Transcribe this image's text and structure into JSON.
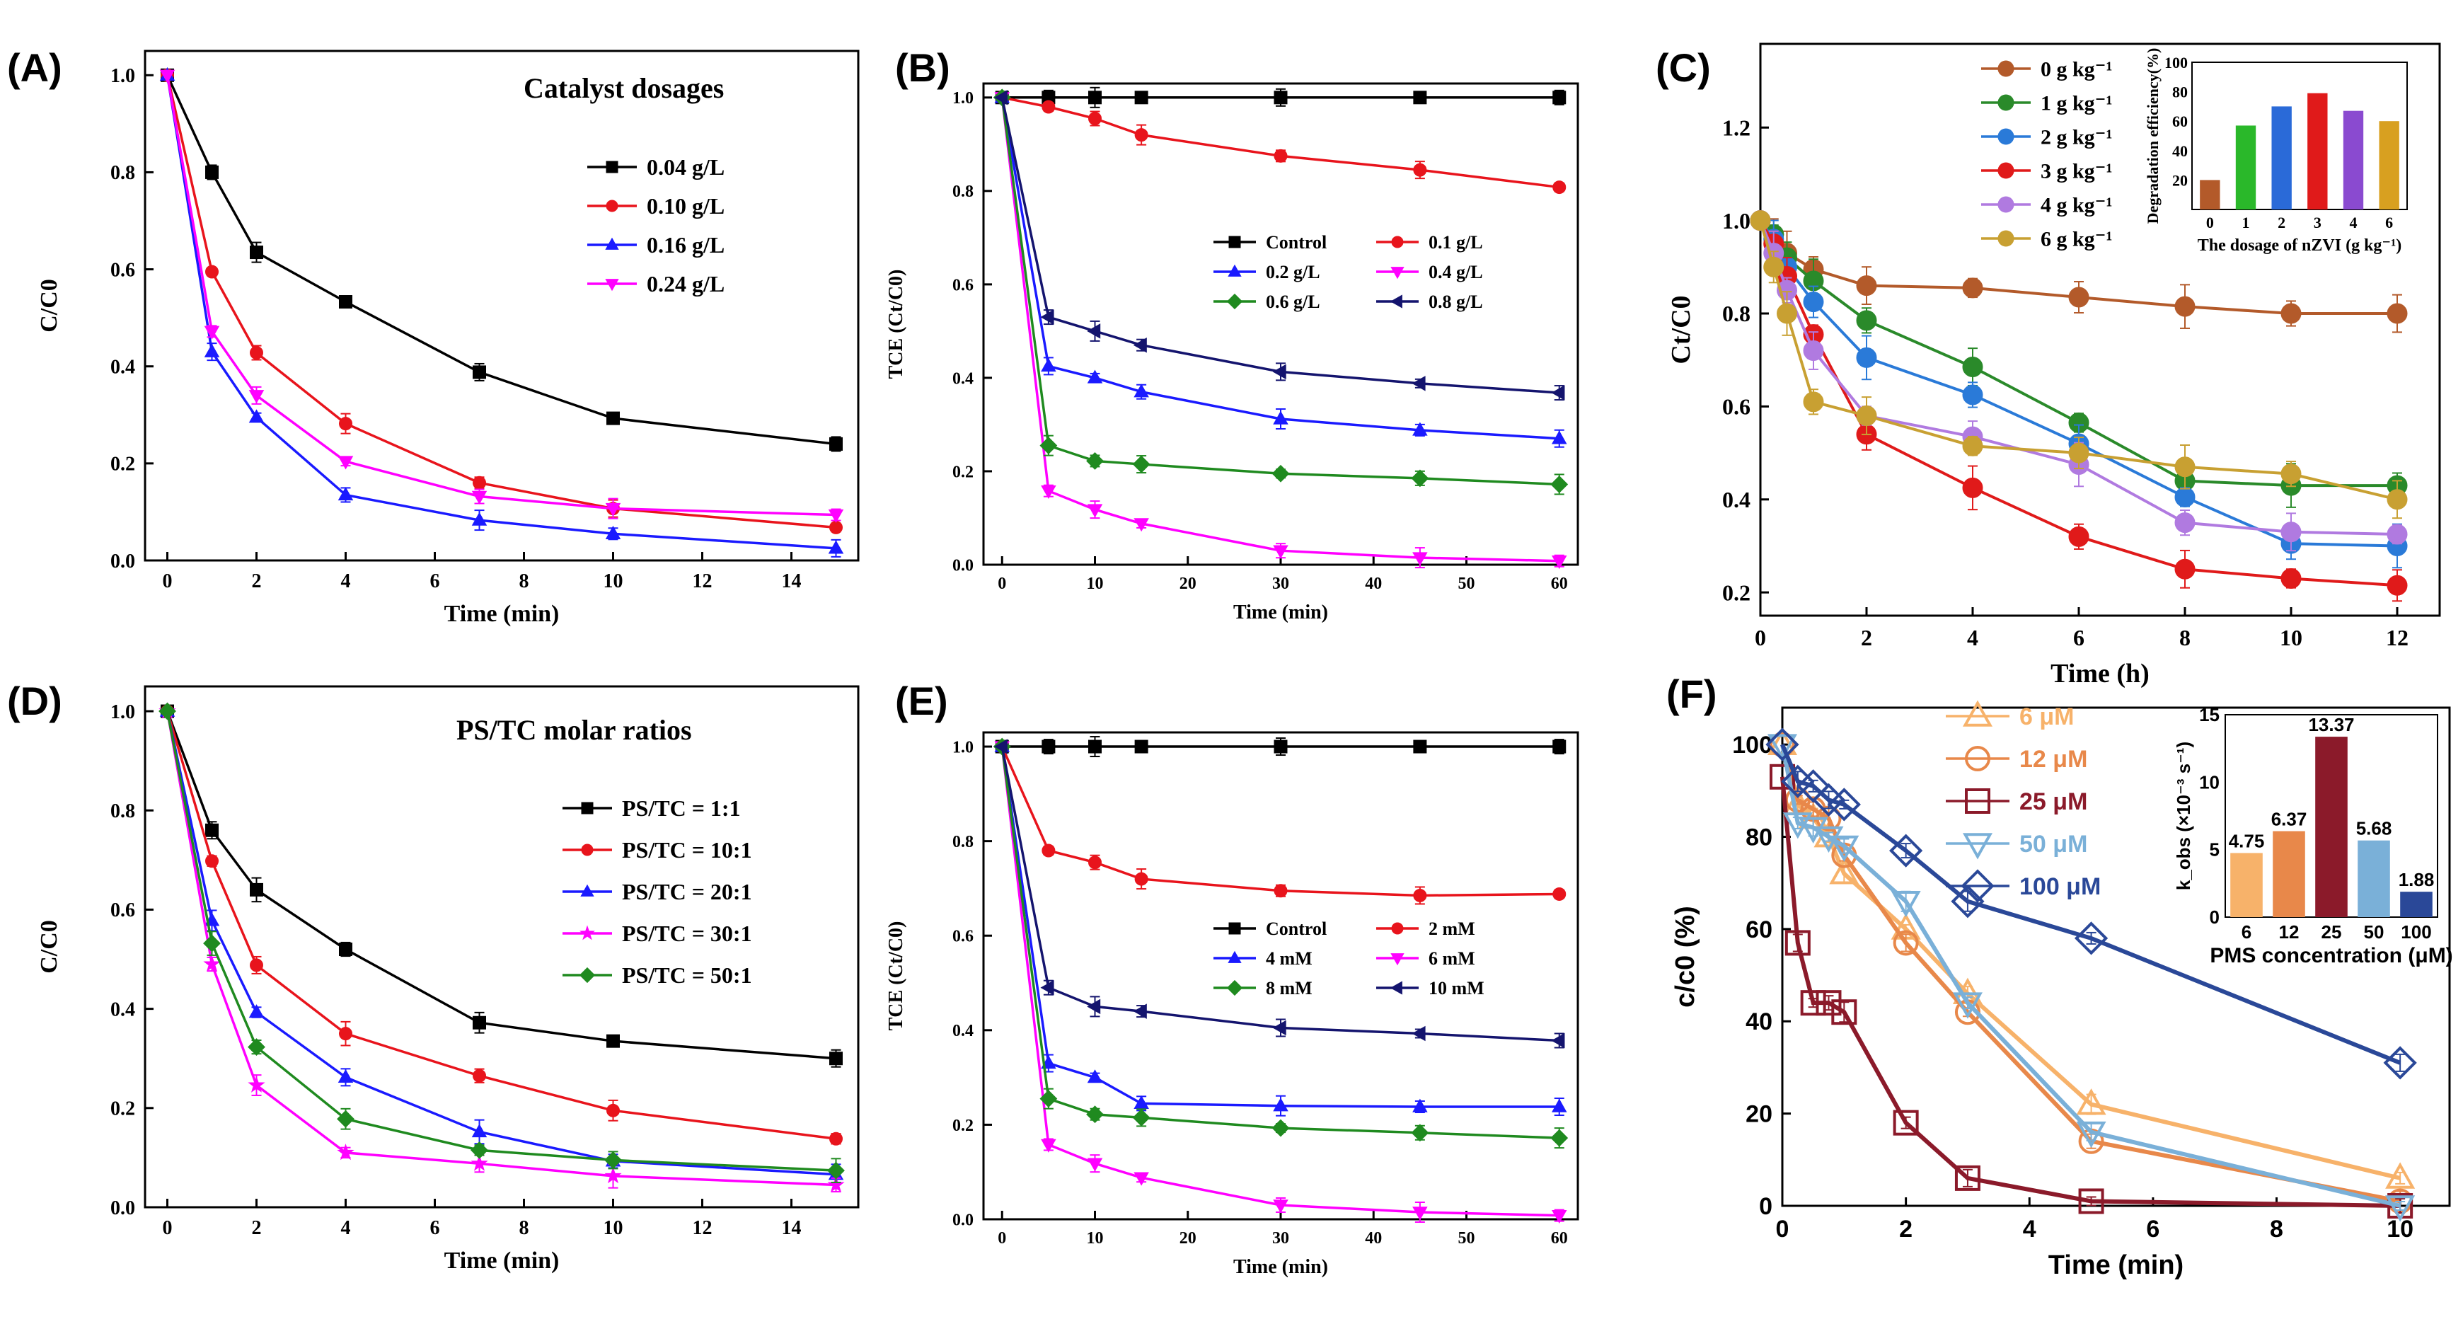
{
  "chart_data": [
    {
      "panel": "(A)",
      "type": "line",
      "title": "Catalyst dosages",
      "xlabel": "Time (min)",
      "ylabel": "C/C0",
      "xlim": [
        -0.5,
        15.5
      ],
      "ylim": [
        0,
        1.05
      ],
      "xticks": [
        "0",
        "2",
        "4",
        "6",
        "8",
        "10",
        "12",
        "14"
      ],
      "yticks": [
        "0.0",
        "0.2",
        "0.4",
        "0.6",
        "0.8",
        "1.0"
      ],
      "legend_position": "right",
      "x": [
        0,
        1,
        2,
        4,
        7,
        10,
        15
      ],
      "series": [
        {
          "name": "0.04 g/L",
          "color": "#000000",
          "marker": "square",
          "values": [
            1.0,
            0.8,
            0.635,
            0.533,
            0.388,
            0.293,
            0.24
          ]
        },
        {
          "name": "0.10 g/L",
          "color": "#e8141c",
          "marker": "circle",
          "values": [
            1.0,
            0.595,
            0.428,
            0.282,
            0.16,
            0.107,
            0.068
          ]
        },
        {
          "name": "0.16 g/L",
          "color": "#1a1aff",
          "marker": "triangle",
          "values": [
            1.0,
            0.43,
            0.295,
            0.135,
            0.083,
            0.055,
            0.025
          ]
        },
        {
          "name": "0.24 g/L",
          "color": "#ff00ff",
          "marker": "triangle-down",
          "values": [
            1.0,
            0.472,
            0.34,
            0.204,
            0.132,
            0.107,
            0.094
          ]
        }
      ]
    },
    {
      "panel": "(B)",
      "type": "line",
      "title": "",
      "xlabel": "Time (min)",
      "ylabel": "TCE (Ct/C0)",
      "xlim": [
        -2,
        62
      ],
      "ylim": [
        0,
        1.03
      ],
      "xticks": [
        "0",
        "10",
        "20",
        "30",
        "40",
        "50",
        "60"
      ],
      "yticks": [
        "0.0",
        "0.2",
        "0.4",
        "0.6",
        "0.8",
        "1.0"
      ],
      "legend_position": "center",
      "x": [
        0,
        5,
        10,
        15,
        30,
        45,
        60
      ],
      "series": [
        {
          "name": "Control",
          "color": "#000000",
          "marker": "square",
          "values": [
            1.0,
            1.0,
            1.0,
            1.0,
            1.0,
            1.0,
            1.0
          ]
        },
        {
          "name": "0.1 g/L",
          "color": "#e8141c",
          "marker": "circle",
          "values": [
            1.0,
            0.98,
            0.955,
            0.92,
            0.875,
            0.845,
            0.808
          ]
        },
        {
          "name": "0.2 g/L",
          "color": "#1a1aff",
          "marker": "triangle",
          "values": [
            1.0,
            0.425,
            0.4,
            0.37,
            0.312,
            0.288,
            0.27
          ]
        },
        {
          "name": "0.4 g/L",
          "color": "#ff00ff",
          "marker": "triangle-down",
          "values": [
            1.0,
            0.158,
            0.118,
            0.088,
            0.03,
            0.015,
            0.008
          ]
        },
        {
          "name": "0.6 g/L",
          "color": "#1f8a1f",
          "marker": "diamond",
          "values": [
            1.0,
            0.255,
            0.222,
            0.215,
            0.195,
            0.185,
            0.172
          ]
        },
        {
          "name": "0.8 g/L",
          "color": "#14146e",
          "marker": "triangle-left",
          "values": [
            1.0,
            0.53,
            0.5,
            0.47,
            0.413,
            0.388,
            0.368
          ]
        }
      ]
    },
    {
      "panel": "(C)",
      "type": "line",
      "title": "",
      "xlabel": "Time (h)",
      "ylabel": "Ct/C0",
      "xlim": [
        0,
        12.8
      ],
      "ylim": [
        0.15,
        1.38
      ],
      "xticks": [
        "0",
        "2",
        "4",
        "6",
        "8",
        "10",
        "12"
      ],
      "yticks": [
        "0.2",
        "0.4",
        "0.6",
        "0.8",
        "1.0",
        "1.2"
      ],
      "legend_position": "top-left",
      "x": [
        0,
        0.25,
        0.5,
        1,
        2,
        4,
        6,
        8,
        10,
        12
      ],
      "series": [
        {
          "name": "0 g kg⁻¹",
          "color": "#b35a2a",
          "marker": "circle",
          "values": [
            1.0,
            0.97,
            0.93,
            0.895,
            0.86,
            0.855,
            0.835,
            0.815,
            0.8,
            0.8
          ]
        },
        {
          "name": "1 g kg⁻¹",
          "color": "#2a8a2a",
          "marker": "circle",
          "values": [
            1.0,
            0.97,
            0.92,
            0.87,
            0.785,
            0.685,
            0.565,
            0.44,
            0.43,
            0.43
          ]
        },
        {
          "name": "2 g kg⁻¹",
          "color": "#2a7ad8",
          "marker": "circle",
          "values": [
            1.0,
            0.96,
            0.9,
            0.825,
            0.705,
            0.625,
            0.52,
            0.405,
            0.305,
            0.3
          ]
        },
        {
          "name": "3 g kg⁻¹",
          "color": "#e01a1a",
          "marker": "circle",
          "values": [
            1.0,
            0.95,
            0.88,
            0.755,
            0.54,
            0.425,
            0.32,
            0.25,
            0.23,
            0.215
          ]
        },
        {
          "name": "4 g kg⁻¹",
          "color": "#b07ae0",
          "marker": "circle",
          "values": [
            1.0,
            0.93,
            0.85,
            0.72,
            0.58,
            0.535,
            0.475,
            0.35,
            0.33,
            0.325
          ]
        },
        {
          "name": "6 g kg⁻¹",
          "color": "#c8a032",
          "marker": "circle",
          "values": [
            1.0,
            0.9,
            0.8,
            0.61,
            0.58,
            0.515,
            0.5,
            0.47,
            0.455,
            0.4
          ]
        }
      ],
      "inset": {
        "type": "bar",
        "xlabel": "The dosage of nZVI (g kg⁻¹)",
        "ylabel": "Degradation efficiency(%)",
        "ylim": [
          0,
          100
        ],
        "yticks": [
          "20",
          "40",
          "60",
          "80",
          "100"
        ],
        "categories": [
          "0",
          "1",
          "2",
          "3",
          "4",
          "6"
        ],
        "values": [
          20,
          57,
          70,
          79,
          67,
          60
        ],
        "colors": [
          "#b35a2a",
          "#2ab82a",
          "#2a6ad8",
          "#e01a1a",
          "#8a4ad0",
          "#d8a020"
        ]
      }
    },
    {
      "panel": "(D)",
      "type": "line",
      "title": "PS/TC molar ratios",
      "xlabel": "Time (min)",
      "ylabel": "C/C0",
      "xlim": [
        -0.5,
        15.5
      ],
      "ylim": [
        0,
        1.05
      ],
      "xticks": [
        "0",
        "2",
        "4",
        "6",
        "8",
        "10",
        "12",
        "14"
      ],
      "yticks": [
        "0.0",
        "0.2",
        "0.4",
        "0.6",
        "0.8",
        "1.0"
      ],
      "legend_position": "right",
      "x": [
        0,
        1,
        2,
        4,
        7,
        10,
        15
      ],
      "series": [
        {
          "name": "PS/TC = 1:1",
          "color": "#000000",
          "marker": "square",
          "values": [
            1.0,
            0.76,
            0.64,
            0.52,
            0.372,
            0.335,
            0.3
          ]
        },
        {
          "name": "PS/TC = 10:1",
          "color": "#e8141c",
          "marker": "circle",
          "values": [
            1.0,
            0.698,
            0.488,
            0.35,
            0.265,
            0.195,
            0.138
          ]
        },
        {
          "name": "PS/TC = 20:1",
          "color": "#1a1aff",
          "marker": "triangle",
          "values": [
            1.0,
            0.578,
            0.393,
            0.262,
            0.152,
            0.093,
            0.066
          ]
        },
        {
          "name": "PS/TC = 30:1",
          "color": "#ff00ff",
          "marker": "star",
          "values": [
            1.0,
            0.49,
            0.246,
            0.11,
            0.088,
            0.063,
            0.045
          ]
        },
        {
          "name": "PS/TC = 50:1",
          "color": "#1f8a1f",
          "marker": "diamond",
          "values": [
            1.0,
            0.532,
            0.323,
            0.178,
            0.115,
            0.095,
            0.074
          ]
        }
      ]
    },
    {
      "panel": "(E)",
      "type": "line",
      "title": "",
      "xlabel": "Time (min)",
      "ylabel": "TCE (Ct/C0)",
      "xlim": [
        -2,
        62
      ],
      "ylim": [
        0,
        1.03
      ],
      "xticks": [
        "0",
        "10",
        "20",
        "30",
        "40",
        "50",
        "60"
      ],
      "yticks": [
        "0.0",
        "0.2",
        "0.4",
        "0.6",
        "0.8",
        "1.0"
      ],
      "legend_position": "center",
      "x": [
        0,
        5,
        10,
        15,
        30,
        45,
        60
      ],
      "series": [
        {
          "name": "Control",
          "color": "#000000",
          "marker": "square",
          "values": [
            1.0,
            1.0,
            1.0,
            1.0,
            1.0,
            1.0,
            1.0
          ]
        },
        {
          "name": "2 mM",
          "color": "#e8141c",
          "marker": "circle",
          "values": [
            1.0,
            0.78,
            0.755,
            0.72,
            0.695,
            0.685,
            0.688
          ]
        },
        {
          "name": "4 mM",
          "color": "#1a1aff",
          "marker": "triangle",
          "values": [
            1.0,
            0.33,
            0.3,
            0.245,
            0.24,
            0.238,
            0.238
          ]
        },
        {
          "name": "6 mM",
          "color": "#ff00ff",
          "marker": "triangle-down",
          "values": [
            1.0,
            0.158,
            0.118,
            0.088,
            0.03,
            0.015,
            0.008
          ]
        },
        {
          "name": "8 mM",
          "color": "#1f8a1f",
          "marker": "diamond",
          "values": [
            1.0,
            0.255,
            0.222,
            0.215,
            0.193,
            0.183,
            0.172
          ]
        },
        {
          "name": "10 mM",
          "color": "#14146e",
          "marker": "triangle-left",
          "values": [
            1.0,
            0.49,
            0.45,
            0.44,
            0.405,
            0.393,
            0.378
          ]
        }
      ]
    },
    {
      "panel": "(F)",
      "type": "line",
      "title": "",
      "xlabel": "Time (min)",
      "ylabel": "c/c0 (%)",
      "xlim": [
        0,
        10.8
      ],
      "ylim": [
        0,
        108
      ],
      "xticks": [
        "0",
        "2",
        "4",
        "6",
        "8",
        "10"
      ],
      "yticks": [
        "0",
        "20",
        "40",
        "60",
        "80",
        "100"
      ],
      "legend_position": "top-right",
      "x": [
        0,
        0.25,
        0.5,
        0.75,
        1,
        2,
        3,
        5,
        10
      ],
      "series": [
        {
          "name": "6 μM",
          "color": "#f7b26a",
          "marker": "triangle",
          "values": [
            100,
            87,
            84,
            80,
            72,
            60,
            46,
            22,
            6
          ]
        },
        {
          "name": "12 μM",
          "color": "#e8884a",
          "marker": "circle",
          "values": [
            100,
            88,
            86,
            84,
            76,
            57,
            42,
            14,
            1
          ]
        },
        {
          "name": "25 μM",
          "color": "#8b1a2a",
          "marker": "square",
          "values": [
            93,
            57,
            44,
            44,
            42,
            18,
            6,
            1,
            0
          ]
        },
        {
          "name": "50 μM",
          "color": "#7ab0d8",
          "marker": "triangle-down",
          "values": [
            100,
            83,
            82,
            80,
            78,
            66,
            44,
            16,
            0
          ]
        },
        {
          "name": "100 μM",
          "color": "#2a4898",
          "marker": "diamond",
          "values": [
            100,
            92,
            91,
            88,
            87,
            77,
            66,
            58,
            31
          ]
        }
      ],
      "inset": {
        "type": "bar",
        "xlabel": "PMS concentration (μM)",
        "ylabel": "k_obs (×10⁻³ s⁻¹)",
        "ylim": [
          0,
          15
        ],
        "yticks": [
          "0",
          "5",
          "10",
          "15"
        ],
        "categories": [
          "6",
          "12",
          "25",
          "50",
          "100"
        ],
        "values": [
          4.75,
          6.37,
          13.37,
          5.68,
          1.88
        ],
        "value_labels": [
          "4.75",
          "6.37",
          "13.37",
          "5.68",
          "1.88"
        ],
        "colors": [
          "#f7b26a",
          "#e8884a",
          "#8b1a2a",
          "#7ab0d8",
          "#2a4898"
        ]
      }
    }
  ]
}
